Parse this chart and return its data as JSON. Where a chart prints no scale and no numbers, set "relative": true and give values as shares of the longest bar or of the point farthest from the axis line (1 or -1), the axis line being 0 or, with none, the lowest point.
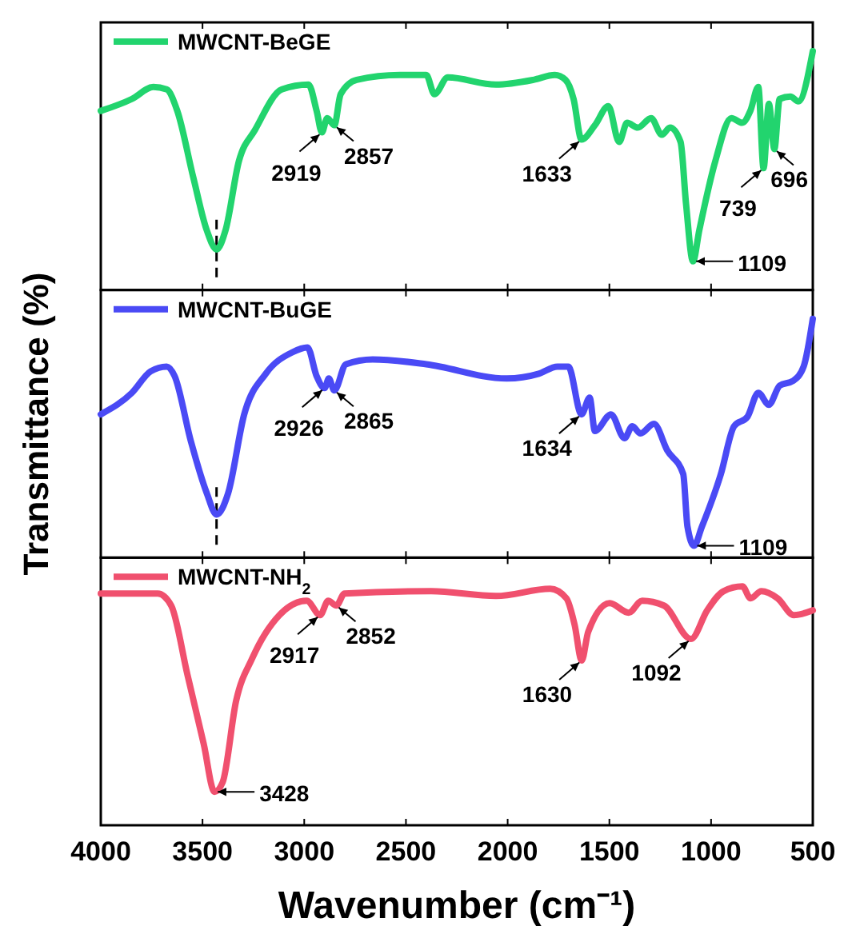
{
  "chart_data": [
    {
      "type": "line",
      "relative": true,
      "xlim": [
        4000,
        500
      ],
      "xticks": [
        4000,
        3500,
        3000,
        2500,
        2000,
        1500,
        1000,
        500
      ],
      "tick_labels": false,
      "legend": "top left",
      "marker": "none",
      "line_style": "solid",
      "series": [
        {
          "name": "MWCNT-BeGE",
          "color": "#22d46e",
          "x": [
            4000,
            3847,
            3742,
            3676,
            3624,
            3545,
            3479,
            3431,
            3387,
            3321,
            3242,
            3110,
            2979,
            2939,
            2913,
            2887,
            2852,
            2821,
            2742,
            2531,
            2400,
            2360,
            2294,
            2058,
            1873,
            1768,
            1716,
            1676,
            1637,
            1571,
            1505,
            1452,
            1413,
            1360,
            1295,
            1242,
            1202,
            1150,
            1123,
            1089,
            1058,
            979,
            900,
            847,
            807,
            768,
            742,
            716,
            689,
            663,
            610,
            571,
            500
          ],
          "values": [
            0.75,
            0.8,
            0.85,
            0.84,
            0.75,
            0.47,
            0.25,
            0.17,
            0.25,
            0.54,
            0.67,
            0.84,
            0.86,
            0.75,
            0.66,
            0.72,
            0.69,
            0.82,
            0.88,
            0.9,
            0.9,
            0.82,
            0.89,
            0.86,
            0.88,
            0.9,
            0.88,
            0.8,
            0.63,
            0.69,
            0.77,
            0.62,
            0.7,
            0.68,
            0.72,
            0.65,
            0.68,
            0.62,
            0.36,
            0.12,
            0.25,
            0.54,
            0.72,
            0.7,
            0.75,
            0.85,
            0.51,
            0.78,
            0.59,
            0.8,
            0.81,
            0.79,
            1.0
          ]
        }
      ],
      "ref_lines": [
        {
          "axis": "x",
          "value": 3431,
          "line_style": "dashed"
        }
      ],
      "annotations": [
        {
          "text": "2919",
          "x": 2913,
          "y": 0.66
        },
        {
          "text": "2857",
          "x": 2852,
          "y": 0.69
        },
        {
          "text": "1633",
          "x": 1637,
          "y": 0.63
        },
        {
          "text": "1109",
          "x": 1089,
          "y": 0.12
        },
        {
          "text": "739",
          "x": 742,
          "y": 0.51
        },
        {
          "text": "696",
          "x": 689,
          "y": 0.59
        }
      ]
    },
    {
      "type": "line",
      "relative": true,
      "xlim": [
        4000,
        500
      ],
      "xticks": [
        4000,
        3500,
        3000,
        2500,
        2000,
        1500,
        1000,
        500
      ],
      "tick_labels": false,
      "legend": "top left",
      "marker": "none",
      "line_style": "solid",
      "ylabel": "Transmittance (%)",
      "series": [
        {
          "name": "MWCNT-BuGE",
          "color": "#4a4af5",
          "x": [
            4000,
            3847,
            3755,
            3676,
            3637,
            3558,
            3479,
            3431,
            3374,
            3295,
            3189,
            3058,
            2984,
            2939,
            2900,
            2879,
            2852,
            2795,
            2663,
            2400,
            2005,
            1847,
            1755,
            1702,
            1637,
            1597,
            1571,
            1492,
            1426,
            1387,
            1347,
            1281,
            1216,
            1137,
            1116,
            1084,
            1045,
            952,
            887,
            821,
            768,
            716,
            663,
            597,
            545,
            500
          ],
          "values": [
            0.6,
            0.69,
            0.78,
            0.8,
            0.76,
            0.49,
            0.27,
            0.18,
            0.27,
            0.6,
            0.77,
            0.86,
            0.88,
            0.76,
            0.71,
            0.75,
            0.7,
            0.81,
            0.83,
            0.81,
            0.75,
            0.77,
            0.8,
            0.8,
            0.6,
            0.67,
            0.53,
            0.6,
            0.5,
            0.55,
            0.52,
            0.56,
            0.45,
            0.35,
            0.13,
            0.05,
            0.13,
            0.35,
            0.55,
            0.59,
            0.69,
            0.64,
            0.72,
            0.74,
            0.8,
            1.0
          ]
        }
      ],
      "ref_lines": [
        {
          "axis": "x",
          "value": 3431,
          "line_style": "dashed"
        }
      ],
      "annotations": [
        {
          "text": "2926",
          "x": 2900,
          "y": 0.71
        },
        {
          "text": "2865",
          "x": 2852,
          "y": 0.7
        },
        {
          "text": "1634",
          "x": 1637,
          "y": 0.6
        },
        {
          "text": "1109",
          "x": 1084,
          "y": 0.05
        }
      ]
    },
    {
      "type": "line",
      "relative": true,
      "xlim": [
        4000,
        500
      ],
      "xticks": [
        4000,
        3500,
        3000,
        2500,
        2000,
        1500,
        1000,
        500
      ],
      "tick_labels": "x",
      "legend": "top left",
      "marker": "none",
      "line_style": "solid",
      "xlabel": "Wavenumber (cm⁻¹)",
      "series": [
        {
          "name": "MWCNT-NH$_{2}$",
          "color": "#f0506e",
          "x": [
            4000,
            3720,
            3654,
            3574,
            3494,
            3441,
            3401,
            3335,
            3255,
            3122,
            2988,
            2922,
            2882,
            2842,
            2802,
            2376,
            2057,
            1791,
            1711,
            1671,
            1636,
            1604,
            1498,
            1405,
            1339,
            1232,
            1099,
            1019,
            939,
            846,
            806,
            753,
            673,
            593,
            500
          ],
          "values": [
            0.97,
            0.97,
            0.92,
            0.63,
            0.34,
            0.14,
            0.18,
            0.52,
            0.7,
            0.88,
            0.94,
            0.88,
            0.94,
            0.92,
            0.97,
            0.98,
            0.96,
            0.99,
            0.95,
            0.84,
            0.69,
            0.81,
            0.93,
            0.89,
            0.94,
            0.92,
            0.78,
            0.9,
            0.98,
            1.0,
            0.95,
            0.98,
            0.95,
            0.88,
            0.9
          ]
        }
      ],
      "annotations": [
        {
          "text": "2917",
          "x": 2922,
          "y": 0.88
        },
        {
          "text": "2852",
          "x": 2842,
          "y": 0.92
        },
        {
          "text": "1630",
          "x": 1636,
          "y": 0.69
        },
        {
          "text": "1092",
          "x": 1099,
          "y": 0.78
        },
        {
          "text": "3428",
          "x": 3441,
          "y": 0.14
        }
      ]
    }
  ]
}
